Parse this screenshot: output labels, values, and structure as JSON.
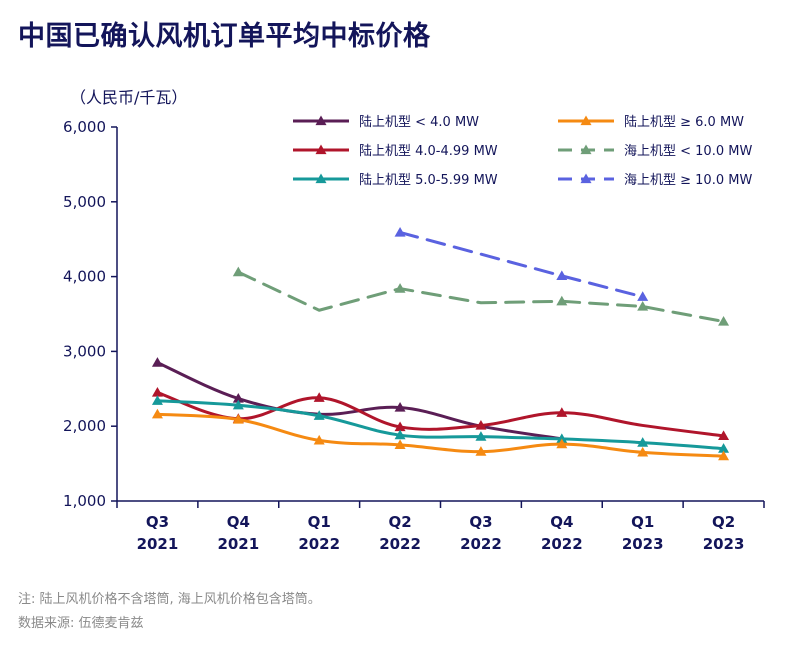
{
  "title": "中国已确认风机订单平均中标价格",
  "unit_label": "（人民币/千瓦）",
  "notes": {
    "line1": "注: 陆上风机价格不含塔筒, 海上风机价格包含塔筒。",
    "line2": "数据来源: 伍德麦肯兹"
  },
  "chart_data": {
    "type": "line",
    "title": "中国已确认风机订单平均中标价格",
    "ylabel": "（人民币/千瓦）",
    "xlabel": "",
    "ylim": [
      1000,
      6000
    ],
    "yticks": [
      "1,000",
      "2,000",
      "3,000",
      "4,000",
      "5,000",
      "6,000"
    ],
    "ytick_values": [
      1000,
      2000,
      3000,
      4000,
      5000,
      6000
    ],
    "categories": [
      [
        "Q3",
        "2021"
      ],
      [
        "Q4",
        "2021"
      ],
      [
        "Q1",
        "2022"
      ],
      [
        "Q2",
        "2022"
      ],
      [
        "Q3",
        "2022"
      ],
      [
        "Q4",
        "2022"
      ],
      [
        "Q1",
        "2023"
      ],
      [
        "Q2",
        "2023"
      ]
    ],
    "grid": false,
    "legend_position": "top-right",
    "series": [
      {
        "name": "陆上机型 < 4.0 MW",
        "color": "#5a1e55",
        "dashed": false,
        "values": [
          2850,
          2370,
          2160,
          2250,
          2000,
          null,
          null,
          null
        ],
        "markers": [
          true,
          true,
          false,
          true,
          false,
          false,
          false,
          false
        ],
        "end_x": 5
      },
      {
        "name": "陆上机型 4.0-4.99 MW",
        "color": "#b0152b",
        "dashed": false,
        "values": [
          2450,
          2100,
          2380,
          1990,
          2010,
          2180,
          2010,
          1870
        ],
        "markers": [
          true,
          true,
          true,
          true,
          true,
          true,
          false,
          true
        ]
      },
      {
        "name": "陆上机型 5.0-5.99 MW",
        "color": "#16999a",
        "dashed": false,
        "values": [
          2340,
          2280,
          2140,
          1880,
          1860,
          1830,
          1780,
          1700
        ],
        "markers": [
          true,
          true,
          true,
          true,
          true,
          true,
          true,
          true
        ]
      },
      {
        "name": "陆上机型 ≥ 6.0 MW",
        "color": "#f58a12",
        "dashed": false,
        "values": [
          2160,
          2090,
          1810,
          1750,
          1660,
          1760,
          1650,
          1600
        ],
        "markers": [
          true,
          true,
          true,
          true,
          true,
          true,
          true,
          true
        ]
      },
      {
        "name": "海上机型 < 10.0 MW",
        "color": "#6f9e78",
        "dashed": true,
        "values": [
          null,
          4060,
          3550,
          3840,
          3650,
          3670,
          3600,
          3400
        ],
        "markers": [
          false,
          true,
          false,
          true,
          false,
          true,
          true,
          true
        ]
      },
      {
        "name": "海上机型 ≥ 10.0 MW",
        "color": "#5a62e0",
        "dashed": true,
        "values": [
          null,
          null,
          null,
          4590,
          null,
          4010,
          3730,
          null
        ],
        "markers": [
          false,
          false,
          false,
          true,
          false,
          true,
          true,
          false
        ]
      }
    ]
  }
}
